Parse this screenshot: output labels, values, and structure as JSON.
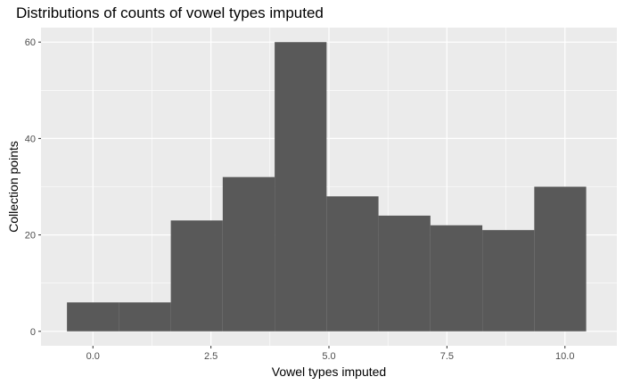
{
  "chart_data": {
    "type": "bar",
    "title": "Distributions of counts of vowel types imputed",
    "xlabel": "Vowel types imputed",
    "ylabel": "Collection points",
    "bins": [
      {
        "x0": -0.55,
        "x1": 0.55,
        "count": 6
      },
      {
        "x0": 0.55,
        "x1": 1.65,
        "count": 6
      },
      {
        "x0": 1.65,
        "x1": 2.75,
        "count": 23
      },
      {
        "x0": 2.75,
        "x1": 3.85,
        "count": 32
      },
      {
        "x0": 3.85,
        "x1": 4.95,
        "count": 60
      },
      {
        "x0": 4.95,
        "x1": 6.05,
        "count": 28
      },
      {
        "x0": 6.05,
        "x1": 7.15,
        "count": 24
      },
      {
        "x0": 7.15,
        "x1": 8.25,
        "count": 22
      },
      {
        "x0": 8.25,
        "x1": 9.35,
        "count": 21
      },
      {
        "x0": 9.35,
        "x1": 10.45,
        "count": 30
      }
    ],
    "xlim": [
      -1.1,
      11.1
    ],
    "ylim": [
      -3,
      63
    ],
    "x_ticks": [
      0.0,
      2.5,
      5.0,
      7.5,
      10.0
    ],
    "x_tick_labels": [
      "0.0",
      "2.5",
      "5.0",
      "7.5",
      "10.0"
    ],
    "y_ticks": [
      0,
      20,
      40,
      60
    ],
    "y_tick_labels": [
      "0",
      "20",
      "40",
      "60"
    ],
    "grid": true,
    "colors": {
      "bar": "#595959",
      "panel": "#ebebeb",
      "grid": "#ffffff"
    }
  }
}
